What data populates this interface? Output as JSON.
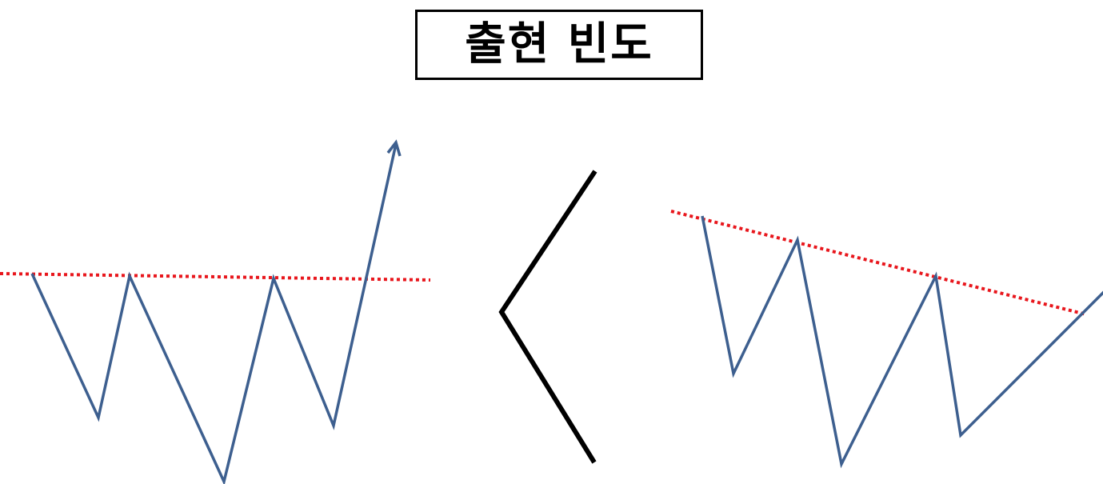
{
  "title": "출현 빈도",
  "diagram": {
    "left_pattern": {
      "name": "",
      "line_color": "#3d5f8f",
      "neckline": "horizontal",
      "neckline_color": "#e8161c"
    },
    "comparison_symbol": "<",
    "right_pattern": {
      "name": "",
      "line_color": "#3d5f8f",
      "neckline": "descending",
      "neckline_color": "#e8161c"
    }
  }
}
